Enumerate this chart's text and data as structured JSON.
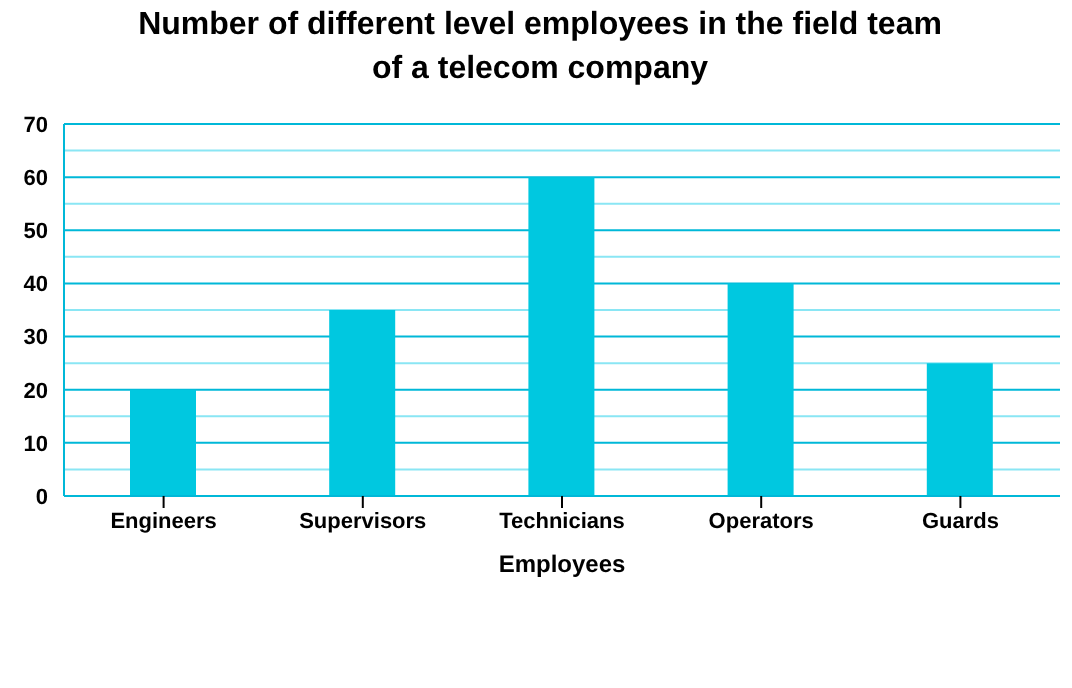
{
  "chart_data": {
    "type": "bar",
    "title": "Number of different level employees in the field team of a telecom company",
    "xlabel": "Employees",
    "categories": [
      "Engineers",
      "Supervisors",
      "Technicians",
      "Operators",
      "Guards"
    ],
    "values": [
      20,
      35,
      60,
      40,
      25
    ],
    "color": "#00c8e0",
    "ylim": [
      0,
      70
    ],
    "yticks": [
      0,
      {
        "value": 5,
        "label": null
      },
      10,
      {
        "value": 15,
        "label": null
      },
      20,
      {
        "value": 25,
        "label": null
      },
      30,
      {
        "value": 35,
        "label": null
      },
      40,
      {
        "value": 45,
        "label": null
      },
      50,
      {
        "value": 55,
        "label": null
      },
      60,
      {
        "value": 65,
        "label": null
      },
      70
    ],
    "grid": "y",
    "legend": false
  }
}
